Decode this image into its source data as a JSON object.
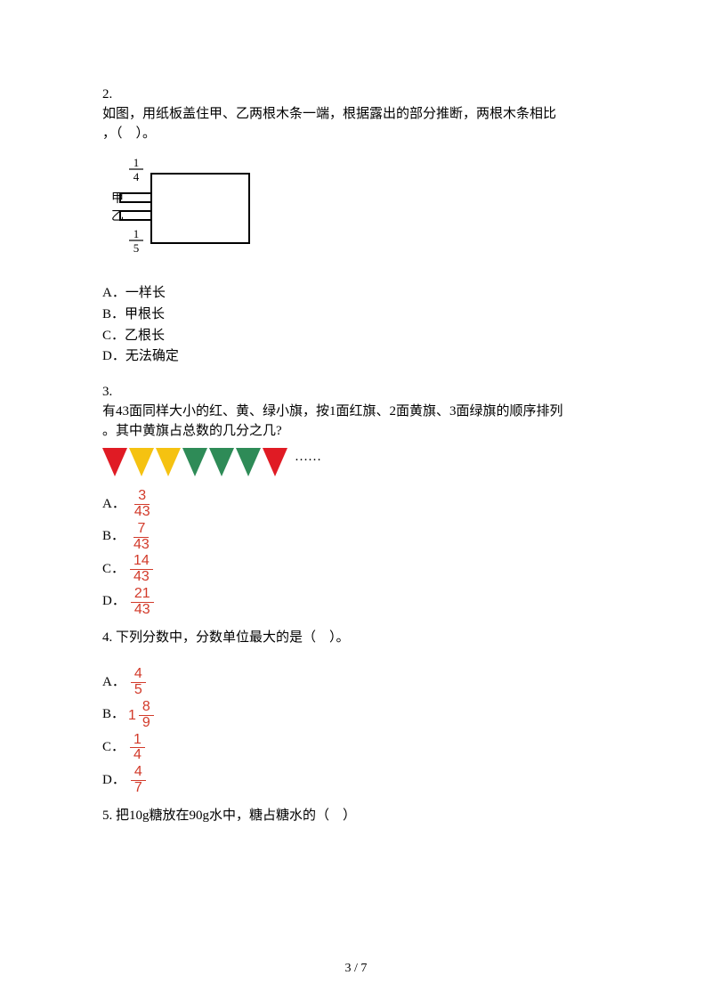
{
  "q2": {
    "number": "2.",
    "text_line1": "如图，用纸板盖住甲、乙两根木条一端，根据露出的部分推断，两根木条相比",
    "text_line2": "，（　）。",
    "options": {
      "A": "A．一样长",
      "B": "B．甲根长",
      "C": "C．乙根长",
      "D": "D．无法确定"
    },
    "diagram": {
      "label_top_num": "1",
      "label_top_den": "4",
      "label_left_top": "甲",
      "label_left_bot": "乙",
      "label_bot_num": "1",
      "label_bot_den": "5",
      "stroke": "#000000"
    }
  },
  "q3": {
    "number": "3.",
    "text_line1": "有43面同样大小的红、黄、绿小旗，按1面红旗、2面黄旗、3面绿旗的顺序排列",
    "text_line2": "。其中黄旗占总数的几分之几?",
    "flag_colors": [
      "#e01b24",
      "#f5c211",
      "#f5c211",
      "#2e8b57",
      "#2e8b57",
      "#2e8b57",
      "#e01b24"
    ],
    "flag_height": 32,
    "dots": "……",
    "options": [
      {
        "letter": "A．",
        "num": "3",
        "den": "43"
      },
      {
        "letter": "B．",
        "num": "7",
        "den": "43"
      },
      {
        "letter": "C．",
        "num": "14",
        "den": "43"
      },
      {
        "letter": "D．",
        "num": "21",
        "den": "43"
      }
    ]
  },
  "q4": {
    "number_text": "4.  下列分数中，分数单位最大的是（　）。",
    "options": [
      {
        "letter": "A．",
        "whole": "",
        "num": "4",
        "den": "5"
      },
      {
        "letter": "B．",
        "whole": "1",
        "num": "8",
        "den": "9"
      },
      {
        "letter": "C．",
        "whole": "",
        "num": "1",
        "den": "4"
      },
      {
        "letter": "D．",
        "whole": "",
        "num": "4",
        "den": "7"
      }
    ]
  },
  "q5": {
    "text": "5.  把10g糖放在90g水中，糖占糖水的（　）"
  },
  "footer": "3 / 7",
  "colors": {
    "text": "#000000",
    "fraction": "#d23a2a"
  }
}
